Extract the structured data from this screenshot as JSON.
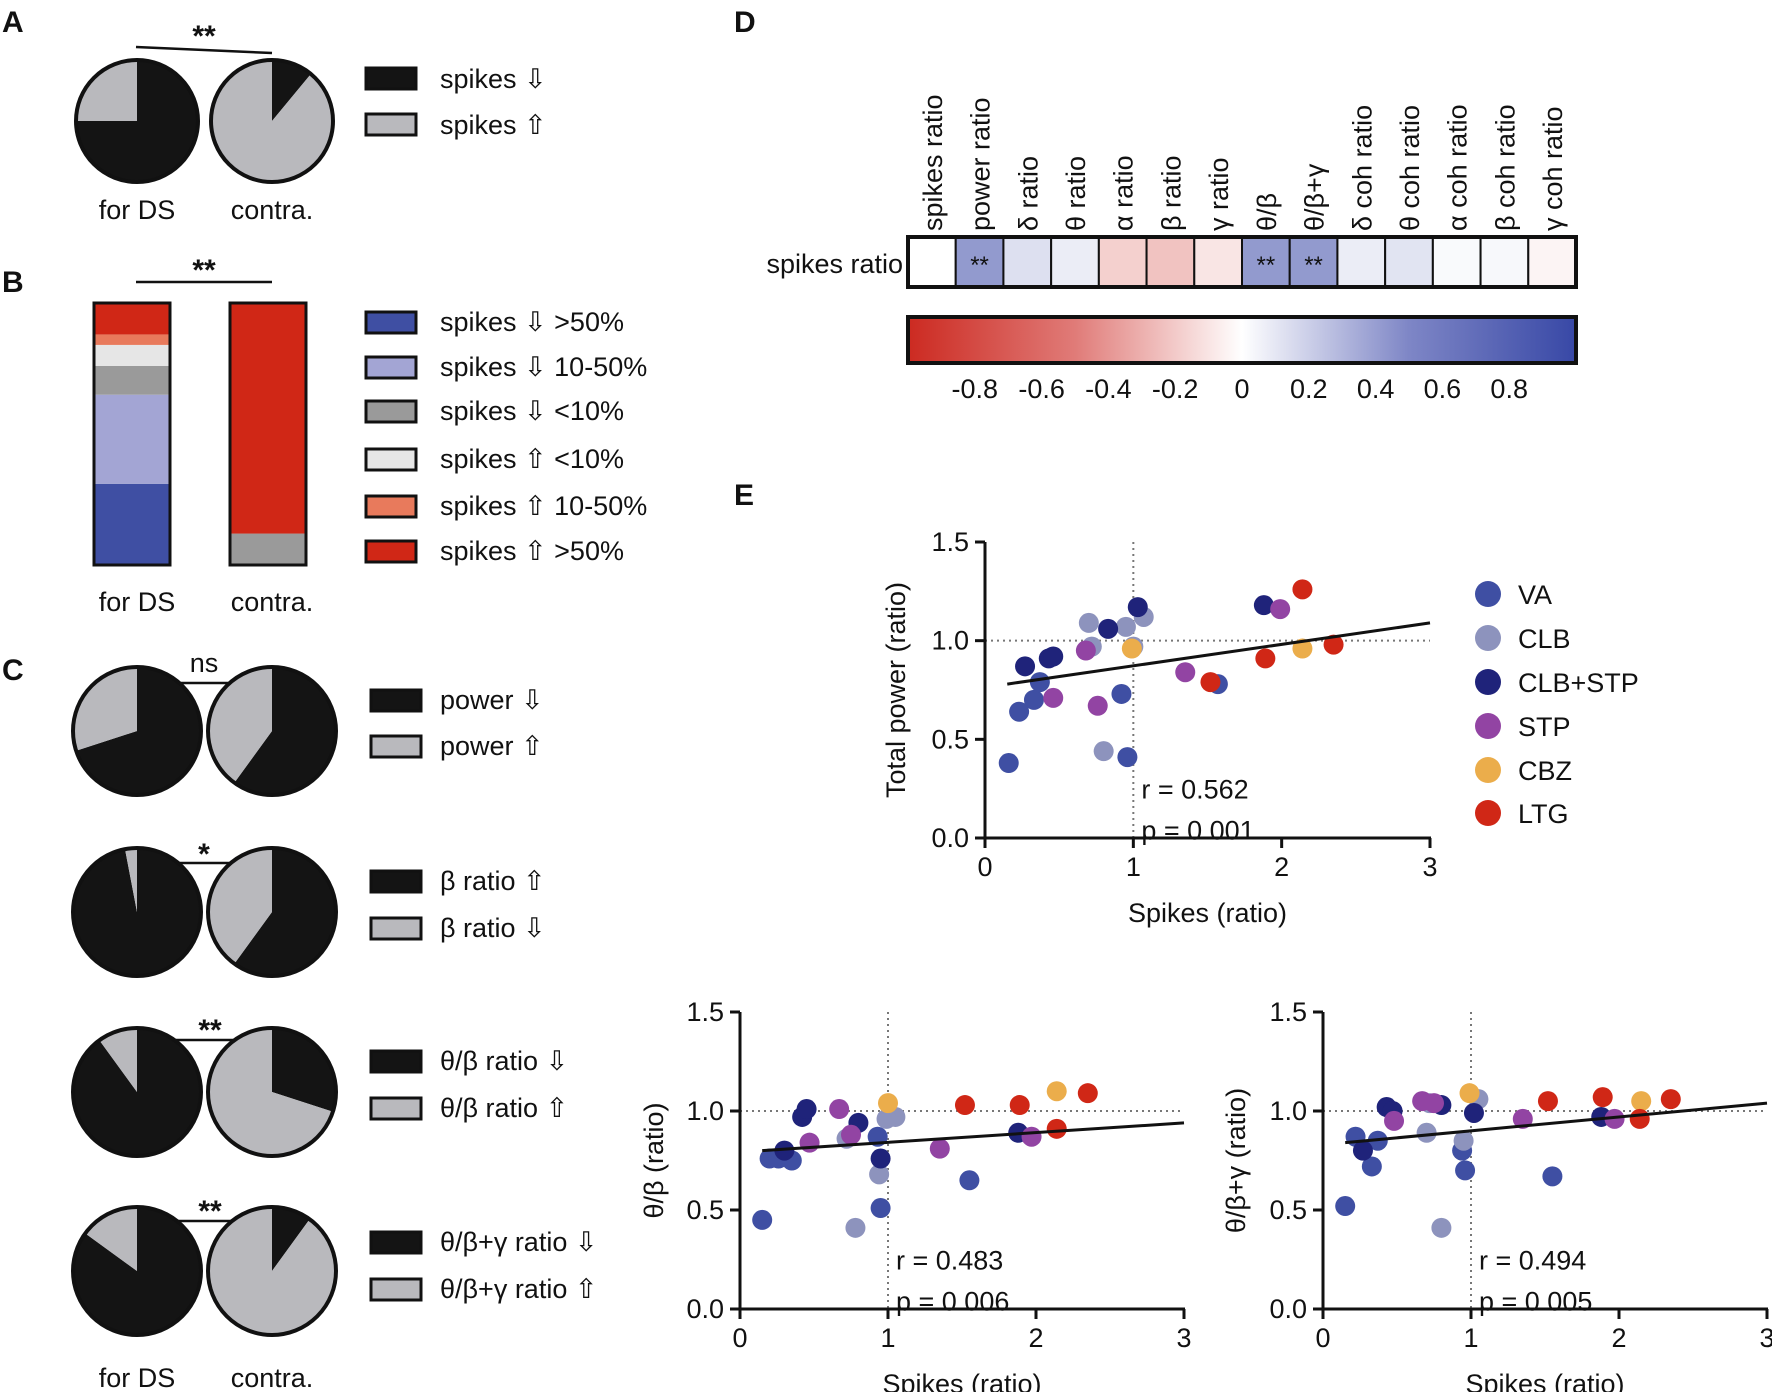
{
  "panels": {
    "A": {
      "label": "A",
      "sig": "**",
      "groups": [
        {
          "name": "for DS",
          "fractions": [
            0.75,
            0.25
          ]
        },
        {
          "name": "contra.",
          "fractions": [
            0.11,
            0.89
          ]
        }
      ],
      "legend": [
        "spikes ⇩",
        "spikes ⇧"
      ],
      "colors": [
        "#141414",
        "#b9b9bd"
      ]
    },
    "B": {
      "label": "B",
      "sig": "**",
      "groups": [
        {
          "name": "for DS",
          "fractions": [
            0.31,
            0.34,
            0.11,
            0.08,
            0.04,
            0.12
          ]
        },
        {
          "name": "contra.",
          "fractions": [
            0.0,
            0.0,
            0.12,
            0.0,
            0.0,
            0.88
          ]
        }
      ],
      "legend": [
        "spikes ⇩ >50%",
        "spikes ⇩ 10-50%",
        "spikes ⇩ <10%",
        "spikes ⇧ <10%",
        "spikes ⇧ 10-50%",
        "spikes ⇧ >50%"
      ],
      "colors": [
        "#3f4fa3",
        "#a3a5d4",
        "#9a9a9a",
        "#e6e6e6",
        "#e87a5c",
        "#d02716"
      ]
    },
    "C": {
      "label": "C",
      "group_names": [
        "for DS",
        "contra."
      ],
      "colors": [
        "#141414",
        "#b9b9bd"
      ],
      "rows": [
        {
          "sig": "ns",
          "legend": [
            "power ⇩",
            "power ⇧"
          ],
          "fractions": [
            [
              0.7,
              0.3
            ],
            [
              0.6,
              0.4
            ]
          ]
        },
        {
          "sig": "*",
          "legend": [
            "β ratio ⇧",
            "β ratio ⇩"
          ],
          "fractions": [
            [
              0.97,
              0.03
            ],
            [
              0.6,
              0.4
            ]
          ]
        },
        {
          "sig": "**",
          "legend": [
            "θ/β ratio ⇩",
            "θ/β ratio ⇧"
          ],
          "fractions": [
            [
              0.9,
              0.1
            ],
            [
              0.3,
              0.7
            ]
          ]
        },
        {
          "sig": "**",
          "legend": [
            "θ/β+γ ratio ⇩",
            "θ/β+γ ratio ⇧"
          ],
          "fractions": [
            [
              0.85,
              0.15
            ],
            [
              0.1,
              0.9
            ]
          ]
        }
      ]
    },
    "D": {
      "label": "D",
      "row_label": "spikes ratio",
      "columns": [
        "spikes ratio",
        "power ratio",
        "δ ratio",
        "θ ratio",
        "α ratio",
        "β ratio",
        "γ ratio",
        "θ/β",
        "θ/β+γ",
        "δ coh ratio",
        "θ coh ratio",
        "α coh ratio",
        "β coh ratio",
        "γ coh ratio"
      ],
      "values": [
        0.0,
        0.55,
        0.17,
        0.1,
        -0.22,
        -0.28,
        -0.12,
        0.55,
        0.55,
        0.1,
        0.15,
        0.03,
        0.04,
        -0.05
      ],
      "stars": [
        "",
        "**",
        "",
        "",
        "",
        "",
        "",
        "**",
        "**",
        "",
        "",
        "",
        "",
        ""
      ],
      "colorbar_ticks": [
        "-0.8",
        "-0.6",
        "-0.4",
        "-0.2",
        "0",
        "0.2",
        "0.4",
        "0.6",
        "0.8"
      ],
      "colorbar_range": [
        -1.0,
        1.0
      ]
    },
    "E": {
      "label": "E",
      "legend": [
        {
          "name": "VA",
          "color": "#3f4fa3"
        },
        {
          "name": "CLB",
          "color": "#8d93bd"
        },
        {
          "name": "CLB+STP",
          "color": "#1f237a"
        },
        {
          "name": "STP",
          "color": "#9244a3"
        },
        {
          "name": "CBZ",
          "color": "#ebad4b"
        },
        {
          "name": "LTG",
          "color": "#d02716"
        }
      ]
    }
  },
  "chart_data": [
    {
      "type": "pie",
      "panel": "A",
      "groups": [
        "for DS",
        "contra."
      ],
      "series": [
        {
          "name": "spikes ⇩",
          "values": [
            0.75,
            0.11
          ]
        },
        {
          "name": "spikes ⇧",
          "values": [
            0.25,
            0.89
          ]
        }
      ],
      "significance": "**"
    },
    {
      "type": "bar",
      "panel": "B",
      "stacked": true,
      "categories": [
        "for DS",
        "contra."
      ],
      "series": [
        {
          "name": "spikes ⇩ >50%",
          "values": [
            0.31,
            0.0
          ]
        },
        {
          "name": "spikes ⇩ 10-50%",
          "values": [
            0.34,
            0.0
          ]
        },
        {
          "name": "spikes ⇩ <10%",
          "values": [
            0.11,
            0.12
          ]
        },
        {
          "name": "spikes ⇧ <10%",
          "values": [
            0.08,
            0.0
          ]
        },
        {
          "name": "spikes ⇧ 10-50%",
          "values": [
            0.04,
            0.0
          ]
        },
        {
          "name": "spikes ⇧ >50%",
          "values": [
            0.12,
            0.88
          ]
        }
      ],
      "significance": "**"
    },
    {
      "type": "pie",
      "panel": "C",
      "groups": [
        "for DS",
        "contra."
      ],
      "rows": [
        {
          "legend": [
            "power ⇩",
            "power ⇧"
          ],
          "values": [
            [
              0.7,
              0.3
            ],
            [
              0.6,
              0.4
            ]
          ],
          "significance": "ns"
        },
        {
          "legend": [
            "β ratio ⇧",
            "β ratio ⇩"
          ],
          "values": [
            [
              0.97,
              0.03
            ],
            [
              0.6,
              0.4
            ]
          ],
          "significance": "*"
        },
        {
          "legend": [
            "θ/β ratio ⇩",
            "θ/β ratio ⇧"
          ],
          "values": [
            [
              0.9,
              0.1
            ],
            [
              0.3,
              0.7
            ]
          ],
          "significance": "**"
        },
        {
          "legend": [
            "θ/β+γ ratio ⇩",
            "θ/β+γ ratio ⇧"
          ],
          "values": [
            [
              0.85,
              0.15
            ],
            [
              0.1,
              0.9
            ]
          ],
          "significance": "**"
        }
      ]
    },
    {
      "type": "heatmap",
      "panel": "D",
      "rows": [
        "spikes ratio"
      ],
      "columns": [
        "spikes ratio",
        "power ratio",
        "δ ratio",
        "θ ratio",
        "α ratio",
        "β ratio",
        "γ ratio",
        "θ/β",
        "θ/β+γ",
        "δ coh ratio",
        "θ coh ratio",
        "α coh ratio",
        "β coh ratio",
        "γ coh ratio"
      ],
      "values": [
        [
          0.0,
          0.55,
          0.17,
          0.1,
          -0.22,
          -0.28,
          -0.12,
          0.55,
          0.55,
          0.1,
          0.15,
          0.03,
          0.04,
          -0.05
        ]
      ],
      "colorbar": {
        "min": -1.0,
        "max": 1.0,
        "ticks": [
          -0.8,
          -0.6,
          -0.4,
          -0.2,
          0,
          0.2,
          0.4,
          0.6,
          0.8
        ]
      }
    },
    {
      "type": "scatter",
      "panel": "E",
      "id": "power",
      "xlabel": "Spikes (ratio)",
      "ylabel": "Total power (ratio)",
      "xlim": [
        0,
        3
      ],
      "ylim": [
        0,
        1.5
      ],
      "xticks": [
        0,
        1,
        2,
        3
      ],
      "yticks": [
        "0.0",
        "0.5",
        "1.0",
        "1.5"
      ],
      "stats": [
        "r = 0.562",
        "p = 0.001"
      ],
      "regression": [
        [
          0.15,
          0.78
        ],
        [
          3.0,
          1.09
        ]
      ],
      "points": [
        {
          "x": 0.16,
          "y": 0.38,
          "g": "VA"
        },
        {
          "x": 0.23,
          "y": 0.64,
          "g": "VA"
        },
        {
          "x": 0.33,
          "y": 0.7,
          "g": "VA"
        },
        {
          "x": 0.37,
          "y": 0.79,
          "g": "VA"
        },
        {
          "x": 0.92,
          "y": 0.73,
          "g": "VA"
        },
        {
          "x": 0.96,
          "y": 0.41,
          "g": "VA"
        },
        {
          "x": 1.57,
          "y": 0.78,
          "g": "VA"
        },
        {
          "x": 0.7,
          "y": 1.09,
          "g": "CLB"
        },
        {
          "x": 0.72,
          "y": 0.97,
          "g": "CLB"
        },
        {
          "x": 0.8,
          "y": 0.44,
          "g": "CLB"
        },
        {
          "x": 0.95,
          "y": 1.07,
          "g": "CLB"
        },
        {
          "x": 1.07,
          "y": 1.12,
          "g": "CLB"
        },
        {
          "x": 1.0,
          "y": 0.97,
          "g": "CLB"
        },
        {
          "x": 0.27,
          "y": 0.87,
          "g": "CLB+STP"
        },
        {
          "x": 0.43,
          "y": 0.91,
          "g": "CLB+STP"
        },
        {
          "x": 0.46,
          "y": 0.92,
          "g": "CLB+STP"
        },
        {
          "x": 0.83,
          "y": 1.06,
          "g": "CLB+STP"
        },
        {
          "x": 1.03,
          "y": 1.17,
          "g": "CLB+STP"
        },
        {
          "x": 1.88,
          "y": 1.18,
          "g": "CLB+STP"
        },
        {
          "x": 0.46,
          "y": 0.71,
          "g": "STP"
        },
        {
          "x": 0.68,
          "y": 0.95,
          "g": "STP"
        },
        {
          "x": 0.76,
          "y": 0.67,
          "g": "STP"
        },
        {
          "x": 1.35,
          "y": 0.84,
          "g": "STP"
        },
        {
          "x": 1.99,
          "y": 1.16,
          "g": "STP"
        },
        {
          "x": 0.99,
          "y": 0.96,
          "g": "CBZ"
        },
        {
          "x": 2.14,
          "y": 0.96,
          "g": "CBZ"
        },
        {
          "x": 1.52,
          "y": 0.79,
          "g": "LTG"
        },
        {
          "x": 1.89,
          "y": 0.91,
          "g": "LTG"
        },
        {
          "x": 2.14,
          "y": 1.26,
          "g": "LTG"
        },
        {
          "x": 2.35,
          "y": 0.98,
          "g": "LTG"
        }
      ]
    },
    {
      "type": "scatter",
      "panel": "E",
      "id": "tb",
      "xlabel": "Spikes (ratio)",
      "ylabel": "θ/β (ratio)",
      "xlim": [
        0,
        3
      ],
      "ylim": [
        0,
        1.5
      ],
      "xticks": [
        0,
        1,
        2,
        3
      ],
      "yticks": [
        "0.0",
        "0.5",
        "1.0",
        "1.5"
      ],
      "stats": [
        "r = 0.483",
        "p = 0.006"
      ],
      "regression": [
        [
          0.15,
          0.8
        ],
        [
          3.0,
          0.94
        ]
      ],
      "points": [
        {
          "x": 0.15,
          "y": 0.45,
          "g": "VA"
        },
        {
          "x": 0.2,
          "y": 0.76,
          "g": "VA"
        },
        {
          "x": 0.26,
          "y": 0.76,
          "g": "VA"
        },
        {
          "x": 0.35,
          "y": 0.75,
          "g": "VA"
        },
        {
          "x": 0.93,
          "y": 0.87,
          "g": "VA"
        },
        {
          "x": 0.95,
          "y": 0.51,
          "g": "VA"
        },
        {
          "x": 1.55,
          "y": 0.65,
          "g": "VA"
        },
        {
          "x": 0.72,
          "y": 0.86,
          "g": "CLB"
        },
        {
          "x": 0.78,
          "y": 0.41,
          "g": "CLB"
        },
        {
          "x": 0.94,
          "y": 0.68,
          "g": "CLB"
        },
        {
          "x": 1.05,
          "y": 0.97,
          "g": "CLB"
        },
        {
          "x": 0.99,
          "y": 0.96,
          "g": "CLB"
        },
        {
          "x": 0.3,
          "y": 0.8,
          "g": "CLB+STP"
        },
        {
          "x": 0.42,
          "y": 0.97,
          "g": "CLB+STP"
        },
        {
          "x": 0.45,
          "y": 1.01,
          "g": "CLB+STP"
        },
        {
          "x": 0.8,
          "y": 0.94,
          "g": "CLB+STP"
        },
        {
          "x": 0.95,
          "y": 0.76,
          "g": "CLB+STP"
        },
        {
          "x": 1.88,
          "y": 0.89,
          "g": "CLB+STP"
        },
        {
          "x": 0.47,
          "y": 0.84,
          "g": "STP"
        },
        {
          "x": 0.67,
          "y": 1.01,
          "g": "STP"
        },
        {
          "x": 0.75,
          "y": 0.88,
          "g": "STP"
        },
        {
          "x": 1.35,
          "y": 0.81,
          "g": "STP"
        },
        {
          "x": 1.97,
          "y": 0.87,
          "g": "STP"
        },
        {
          "x": 1.0,
          "y": 1.04,
          "g": "CBZ"
        },
        {
          "x": 2.14,
          "y": 1.1,
          "g": "CBZ"
        },
        {
          "x": 1.52,
          "y": 1.03,
          "g": "LTG"
        },
        {
          "x": 1.89,
          "y": 1.03,
          "g": "LTG"
        },
        {
          "x": 2.14,
          "y": 0.91,
          "g": "LTG"
        },
        {
          "x": 2.35,
          "y": 1.09,
          "g": "LTG"
        }
      ]
    },
    {
      "type": "scatter",
      "panel": "E",
      "id": "tbg",
      "xlabel": "Spikes (ratio)",
      "ylabel": "θ/β+γ (ratio)",
      "xlim": [
        0,
        3
      ],
      "ylim": [
        0,
        1.5
      ],
      "xticks": [
        0,
        1,
        2,
        3
      ],
      "yticks": [
        "0.0",
        "0.5",
        "1.0",
        "1.5"
      ],
      "stats": [
        "r = 0.494",
        "p = 0.005"
      ],
      "regression": [
        [
          0.15,
          0.84
        ],
        [
          3.0,
          1.04
        ]
      ],
      "points": [
        {
          "x": 0.15,
          "y": 0.52,
          "g": "VA"
        },
        {
          "x": 0.22,
          "y": 0.87,
          "g": "VA"
        },
        {
          "x": 0.33,
          "y": 0.72,
          "g": "VA"
        },
        {
          "x": 0.37,
          "y": 0.85,
          "g": "VA"
        },
        {
          "x": 0.94,
          "y": 0.8,
          "g": "VA"
        },
        {
          "x": 0.96,
          "y": 0.7,
          "g": "VA"
        },
        {
          "x": 1.55,
          "y": 0.67,
          "g": "VA"
        },
        {
          "x": 0.7,
          "y": 0.89,
          "g": "CLB"
        },
        {
          "x": 0.8,
          "y": 0.41,
          "g": "CLB"
        },
        {
          "x": 0.95,
          "y": 0.85,
          "g": "CLB"
        },
        {
          "x": 1.05,
          "y": 1.06,
          "g": "CLB"
        },
        {
          "x": 0.72,
          "y": 1.04,
          "g": "CLB"
        },
        {
          "x": 0.27,
          "y": 0.8,
          "g": "CLB+STP"
        },
        {
          "x": 0.43,
          "y": 1.02,
          "g": "CLB+STP"
        },
        {
          "x": 0.47,
          "y": 1.0,
          "g": "CLB+STP"
        },
        {
          "x": 0.8,
          "y": 1.03,
          "g": "CLB+STP"
        },
        {
          "x": 1.02,
          "y": 0.99,
          "g": "CLB+STP"
        },
        {
          "x": 1.88,
          "y": 0.97,
          "g": "CLB+STP"
        },
        {
          "x": 0.48,
          "y": 0.95,
          "g": "STP"
        },
        {
          "x": 0.67,
          "y": 1.05,
          "g": "STP"
        },
        {
          "x": 0.75,
          "y": 1.04,
          "g": "STP"
        },
        {
          "x": 1.35,
          "y": 0.96,
          "g": "STP"
        },
        {
          "x": 1.97,
          "y": 0.96,
          "g": "STP"
        },
        {
          "x": 0.99,
          "y": 1.09,
          "g": "CBZ"
        },
        {
          "x": 2.15,
          "y": 1.05,
          "g": "CBZ"
        },
        {
          "x": 1.52,
          "y": 1.05,
          "g": "LTG"
        },
        {
          "x": 1.89,
          "y": 1.07,
          "g": "LTG"
        },
        {
          "x": 2.14,
          "y": 0.96,
          "g": "LTG"
        },
        {
          "x": 2.35,
          "y": 1.06,
          "g": "LTG"
        }
      ]
    }
  ]
}
